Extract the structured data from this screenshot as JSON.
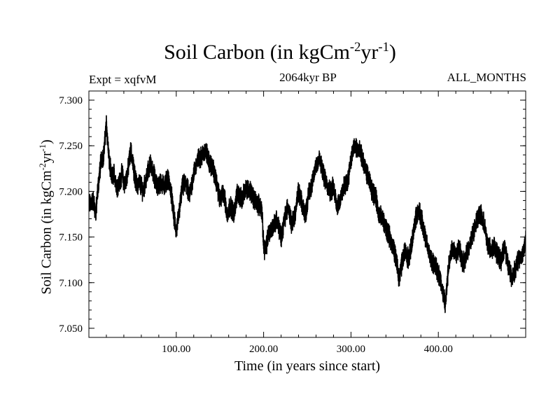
{
  "chart_data": {
    "type": "line",
    "title": {
      "prefix": "Soil Carbon (in kgCm",
      "sup1": "-2",
      "mid": "yr",
      "sup2": "-1",
      "suffix": ")"
    },
    "expt_label": "Expt = xqfvM",
    "subtitle": "2064kyr BP",
    "period_label": "ALL_MONTHS",
    "xlabel": "Time (in years since start)",
    "ylabel": {
      "prefix": "Soil Carbon (in kgCm",
      "sup1": "-2",
      "mid": "yr",
      "sup2": "-1",
      "suffix": ")"
    },
    "xlim": [
      0,
      500
    ],
    "ylim": [
      7.04,
      7.31
    ],
    "x_ticks": [
      {
        "value": 100,
        "label": "100.00"
      },
      {
        "value": 200,
        "label": "200.00"
      },
      {
        "value": 300,
        "label": "300.00"
      },
      {
        "value": 400,
        "label": "400.00"
      }
    ],
    "y_ticks": [
      {
        "value": 7.3,
        "label": "7.300"
      },
      {
        "value": 7.25,
        "label": "7.250"
      },
      {
        "value": 7.2,
        "label": "7.200"
      },
      {
        "value": 7.15,
        "label": "7.150"
      },
      {
        "value": 7.1,
        "label": "7.100"
      },
      {
        "value": 7.05,
        "label": "7.050"
      }
    ],
    "series": [
      {
        "name": "Soil Carbon",
        "color": "#000000",
        "x": [
          0,
          5,
          8,
          10,
          14,
          17,
          20,
          23,
          26,
          29,
          32,
          35,
          38,
          41,
          45,
          48,
          52,
          55,
          58,
          62,
          66,
          70,
          74,
          78,
          82,
          86,
          90,
          94,
          97,
          100,
          103,
          107,
          111,
          115,
          120,
          125,
          130,
          134,
          138,
          142,
          146,
          150,
          154,
          158,
          162,
          166,
          170,
          175,
          180,
          185,
          190,
          195,
          198,
          200,
          202,
          206,
          210,
          215,
          220,
          224,
          228,
          232,
          236,
          240,
          244,
          248,
          252,
          256,
          260,
          264,
          268,
          272,
          276,
          280,
          284,
          288,
          292,
          296,
          300,
          304,
          308,
          312,
          316,
          320,
          324,
          328,
          332,
          336,
          340,
          344,
          348,
          352,
          355,
          358,
          362,
          366,
          370,
          374,
          378,
          382,
          386,
          390,
          394,
          398,
          402,
          405,
          408,
          412,
          416,
          420,
          424,
          428,
          432,
          436,
          440,
          444,
          448,
          452,
          456,
          460,
          464,
          468,
          472,
          476,
          480,
          484,
          488,
          492,
          496,
          500
        ],
        "values": [
          7.185,
          7.19,
          7.175,
          7.2,
          7.235,
          7.24,
          7.275,
          7.235,
          7.215,
          7.22,
          7.205,
          7.21,
          7.22,
          7.205,
          7.225,
          7.245,
          7.22,
          7.205,
          7.21,
          7.2,
          7.215,
          7.23,
          7.22,
          7.205,
          7.21,
          7.205,
          7.215,
          7.2,
          7.175,
          7.155,
          7.175,
          7.205,
          7.21,
          7.195,
          7.22,
          7.235,
          7.24,
          7.245,
          7.23,
          7.225,
          7.21,
          7.19,
          7.2,
          7.175,
          7.185,
          7.175,
          7.2,
          7.19,
          7.205,
          7.2,
          7.19,
          7.185,
          7.18,
          7.14,
          7.135,
          7.155,
          7.16,
          7.17,
          7.15,
          7.17,
          7.185,
          7.165,
          7.175,
          7.2,
          7.185,
          7.175,
          7.2,
          7.21,
          7.23,
          7.235,
          7.22,
          7.21,
          7.2,
          7.205,
          7.185,
          7.19,
          7.205,
          7.21,
          7.235,
          7.25,
          7.245,
          7.24,
          7.225,
          7.215,
          7.2,
          7.195,
          7.175,
          7.17,
          7.16,
          7.15,
          7.14,
          7.125,
          7.105,
          7.12,
          7.135,
          7.125,
          7.145,
          7.17,
          7.18,
          7.165,
          7.145,
          7.13,
          7.12,
          7.115,
          7.105,
          7.09,
          7.075,
          7.12,
          7.14,
          7.13,
          7.14,
          7.12,
          7.13,
          7.14,
          7.155,
          7.17,
          7.175,
          7.165,
          7.145,
          7.135,
          7.14,
          7.13,
          7.125,
          7.14,
          7.12,
          7.105,
          7.115,
          7.125,
          7.13,
          7.145
        ]
      }
    ]
  }
}
